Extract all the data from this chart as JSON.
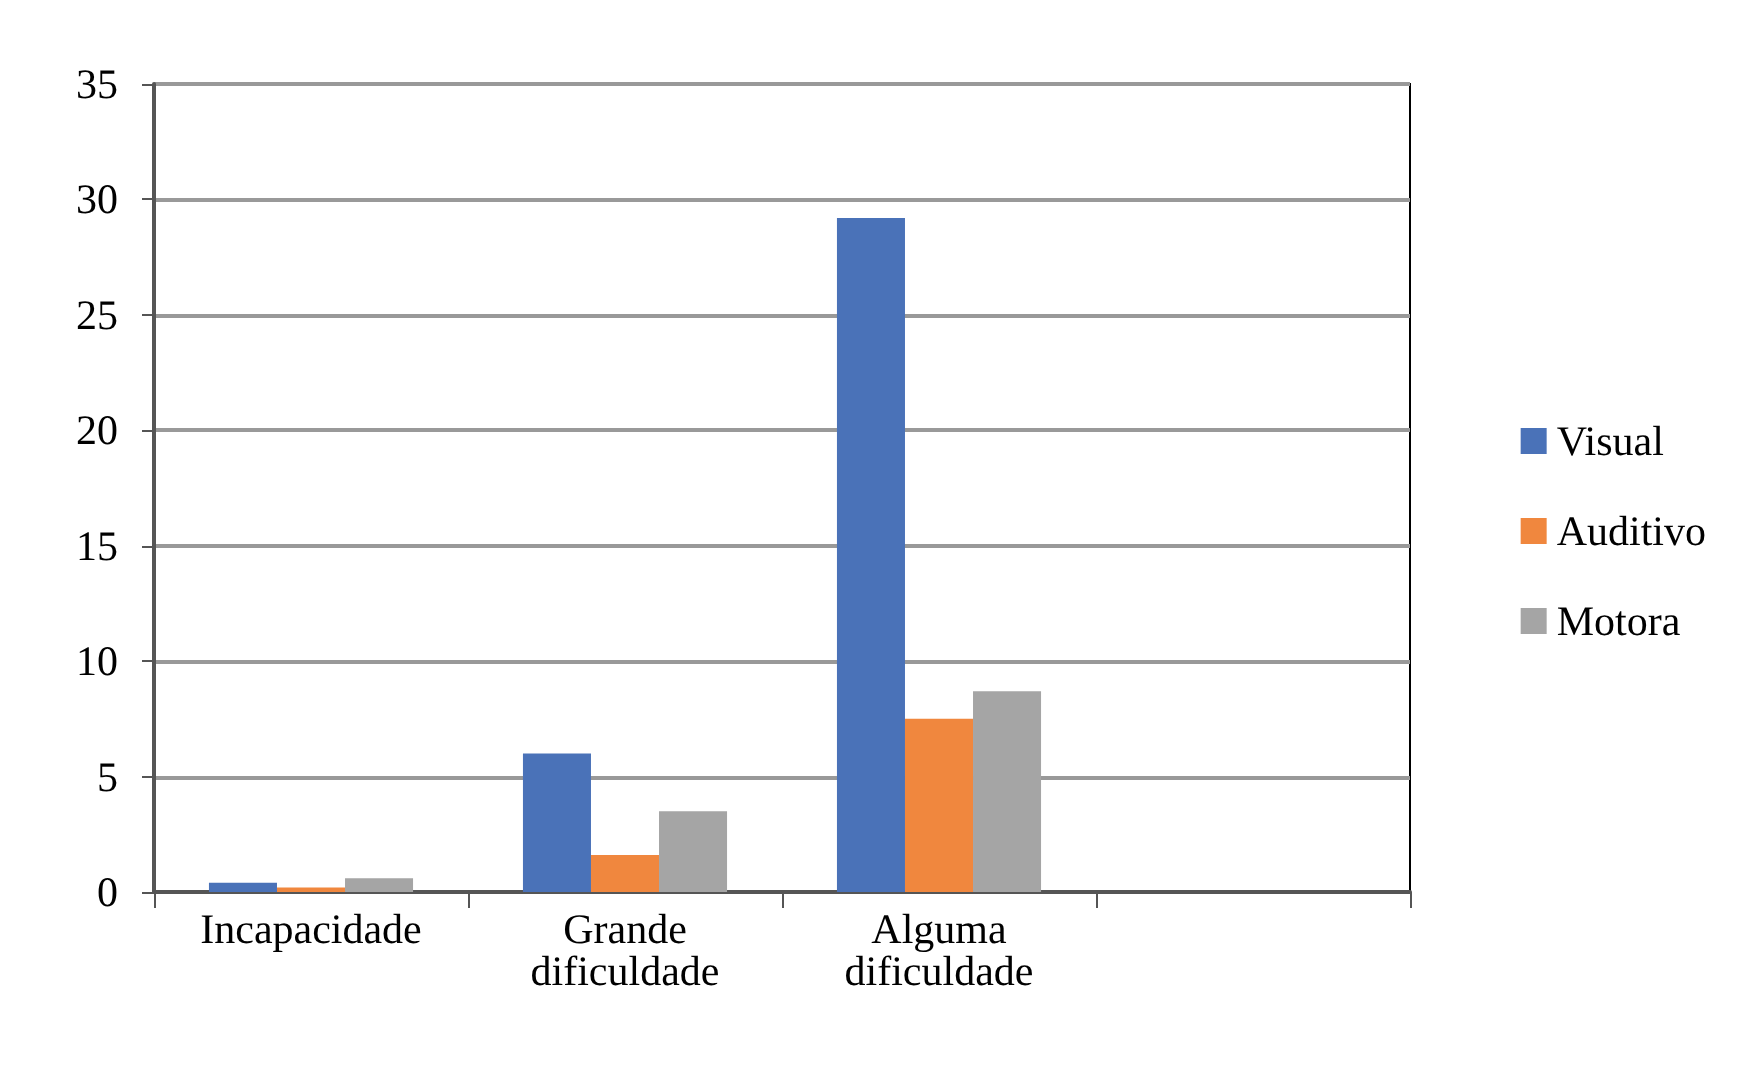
{
  "chart_data": {
    "type": "bar",
    "categories": [
      "Incapacidade",
      "Grande\ndificuldade",
      "Alguma\ndificuldade",
      null
    ],
    "series": [
      {
        "name": "Visual",
        "color": "#4a72b8",
        "values": [
          0.4,
          6.0,
          29.2,
          null
        ]
      },
      {
        "name": "Auditivo",
        "color": "#f0873e",
        "values": [
          0.2,
          1.6,
          7.5,
          null
        ]
      },
      {
        "name": "Motora",
        "color": "#a5a5a5",
        "values": [
          0.6,
          3.5,
          8.7,
          null
        ]
      }
    ],
    "ylim": [
      0,
      35
    ],
    "yticks": [
      0,
      5,
      10,
      15,
      20,
      25,
      30,
      35
    ],
    "grid": "y",
    "legend": "right"
  }
}
